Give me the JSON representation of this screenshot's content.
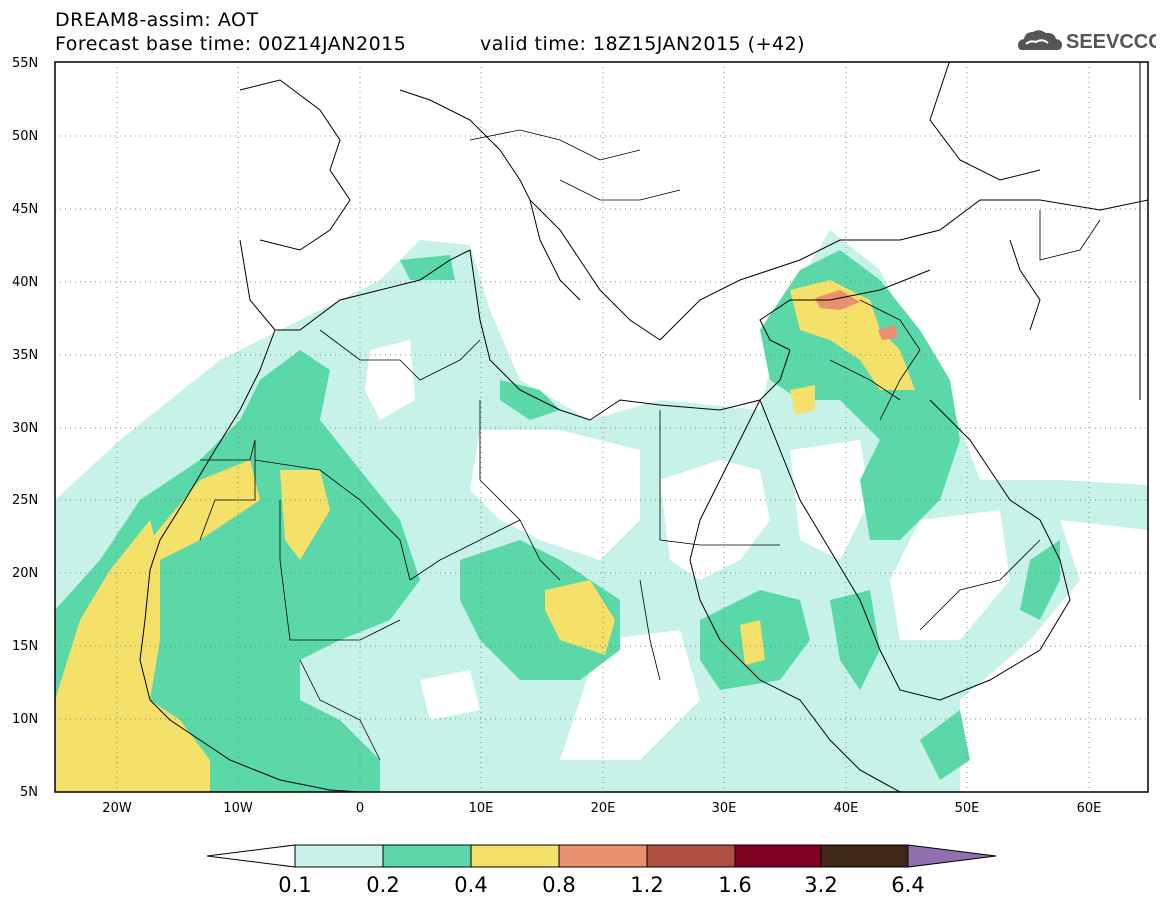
{
  "header": {
    "line1": "DREAM8-assim: AOT",
    "line2": "Forecast base time: 00Z14JAN2015",
    "line3": "valid time: 18Z15JAN2015 (+42)"
  },
  "logo": {
    "text": "SEEVCCC",
    "icon": "cloud-icon"
  },
  "map": {
    "lat_labels": [
      "55N",
      "50N",
      "45N",
      "40N",
      "35N",
      "30N",
      "25N",
      "20N",
      "15N",
      "10N",
      "5N"
    ],
    "lon_labels": [
      "20W",
      "10W",
      "0",
      "10E",
      "20E",
      "30E",
      "40E",
      "50E",
      "60E"
    ],
    "lat_range": [
      5,
      55
    ],
    "lon_range": [
      -25,
      65
    ],
    "grid": "dotted"
  },
  "colorbar": {
    "labels": [
      "0.1",
      "0.2",
      "0.4",
      "0.8",
      "1.2",
      "1.6",
      "3.2",
      "6.4"
    ],
    "colors": [
      "#ffffff",
      "#c6f2ea",
      "#5ad8a8",
      "#f5e06a",
      "#ea9070",
      "#b05040",
      "#800020",
      "#402818",
      "#9070b0"
    ]
  },
  "colors": {
    "c1": "#c6f2ea",
    "c2": "#5ad8a8",
    "c3": "#f5e06a",
    "c4": "#ea9070",
    "c5": "#b05040"
  }
}
